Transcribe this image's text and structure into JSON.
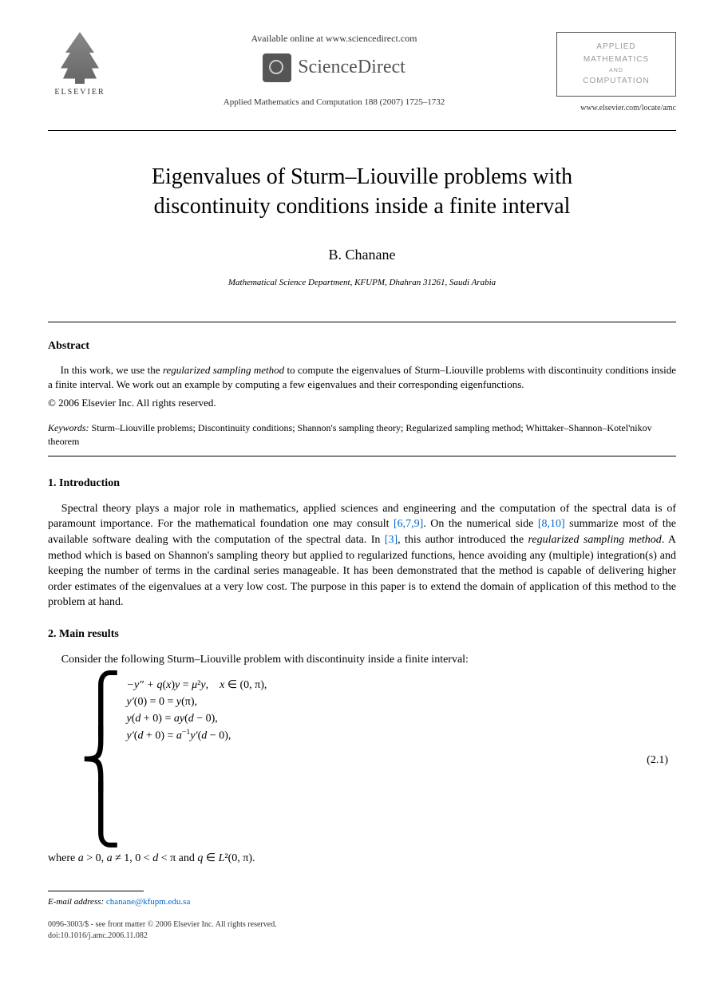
{
  "header": {
    "publisher": "ELSEVIER",
    "available_online": "Available online at www.sciencedirect.com",
    "sciencedirect": "ScienceDirect",
    "journal_ref": "Applied Mathematics and Computation 188 (2007) 1725–1732",
    "journal_box_line1": "APPLIED",
    "journal_box_line2": "MATHEMATICS",
    "journal_box_line3": "AND",
    "journal_box_line4": "COMPUTATION",
    "journal_url": "www.elsevier.com/locate/amc"
  },
  "title": "Eigenvalues of Sturm–Liouville problems with discontinuity conditions inside a finite interval",
  "author": "B. Chanane",
  "affiliation": "Mathematical Science Department, KFUPM, Dhahran 31261, Saudi Arabia",
  "abstract": {
    "heading": "Abstract",
    "text": "In this work, we use the regularized sampling method to compute the eigenvalues of Sturm–Liouville problems with discontinuity conditions inside a finite interval. We work out an example by computing a few eigenvalues and their corresponding eigenfunctions.",
    "copyright": "© 2006 Elsevier Inc. All rights reserved."
  },
  "keywords": {
    "label": "Keywords:",
    "text": " Sturm–Liouville problems; Discontinuity conditions; Shannon's sampling theory; Regularized sampling method; Whittaker–Shannon–Kotel'nikov theorem"
  },
  "sections": {
    "intro": {
      "heading": "1. Introduction",
      "p1_a": "Spectral theory plays a major role in mathematics, applied sciences and engineering and the computation of the spectral data is of paramount importance. For the mathematical foundation one may consult ",
      "ref1": "[6,7,9]",
      "p1_b": ". On the numerical side ",
      "ref2": "[8,10]",
      "p1_c": " summarize most of the available software dealing with the computation of the spectral data. In ",
      "ref3": "[3]",
      "p1_d": ", this author introduced the ",
      "italic1": "regularized sampling method",
      "p1_e": ". A method which is based on Shannon's sampling theory but applied to regularized functions, hence avoiding any (multiple) integration(s) and keeping the number of terms in the cardinal series manageable. It has been demonstrated that the method is capable of delivering higher order estimates of the eigenvalues at a very low cost. The purpose in this paper is to extend the domain of application of this method to the problem at hand."
    },
    "main": {
      "heading": "2. Main results",
      "p1": "Consider the following Sturm–Liouville problem with discontinuity inside a finite interval:",
      "eq": {
        "line1": "−y″ + q(x)y = μ²y,    x ∈ (0, π),",
        "line2": "y′(0) = 0 = y(π),",
        "line3": "y(d + 0) = ay(d − 0),",
        "line4": "y′(d + 0) = a⁻¹y′(d − 0),",
        "num": "(2.1)"
      },
      "p2": "where a > 0, a ≠ 1, 0 < d < π and q ∈ L²(0, π)."
    }
  },
  "footer": {
    "email_label": "E-mail address:",
    "email": "chanane@kfupm.edu.sa",
    "line1": "0096-3003/$ - see front matter © 2006 Elsevier Inc. All rights reserved.",
    "line2": "doi:10.1016/j.amc.2006.11.082"
  }
}
